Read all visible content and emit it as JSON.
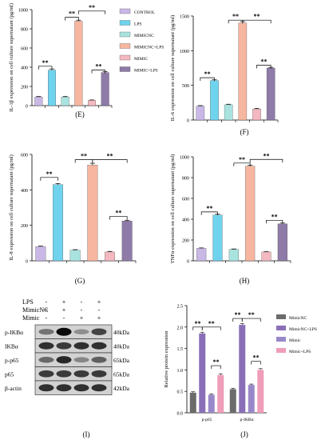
{
  "legend_E": [
    "CONTROL",
    "LPS",
    "MIMICNC",
    "MIMICNC+LPS",
    "MIMIC",
    "MIMIC+LPS"
  ],
  "legend_J": [
    "MimicNC",
    "MimicNC+LPS",
    "Mimic",
    "Mimic+LPS"
  ],
  "colors": {
    "control": "#c9b8e6",
    "lps": "#6fd3ee",
    "mimicnc": "#a9e3df",
    "mimicnc_lps": "#f7b6a0",
    "mimic": "#f3b8c0",
    "mimic_lps": "#8e7ba8",
    "j_mimicnc": "#6b6b6b",
    "j_mimicnc_lps": "#8a6fb8",
    "j_mimic": "#9988c9",
    "j_mimic_lps": "#ef9db8"
  },
  "chart_data": [
    {
      "panel": "E",
      "type": "bar",
      "categories": [
        "CONTROL",
        "LPS",
        "MIMICNC",
        "MIMICNC+LPS",
        "MIMIC",
        "MIMIC+LPS"
      ],
      "values": [
        90,
        370,
        90,
        880,
        55,
        345
      ],
      "errors": [
        5,
        12,
        5,
        10,
        4,
        8
      ],
      "ylabel": "IL-1β expression on cell culture supernatant (pg/ml)",
      "ylim": [
        0,
        1000
      ],
      "yticks": [
        0,
        200,
        400,
        600,
        800,
        1000
      ],
      "yticklabels": [
        "0",
        "200",
        "400",
        "600",
        "800",
        "1000"
      ],
      "significance": [
        {
          "from": 0,
          "to": 1,
          "label": "**",
          "level": 410
        },
        {
          "from": 2,
          "to": 3,
          "label": "**",
          "level": 920
        },
        {
          "from": 3,
          "to": 5,
          "label": "**",
          "level": 985
        },
        {
          "from": 4,
          "to": 5,
          "label": "**",
          "level": 370
        }
      ],
      "panel_label": "(E)"
    },
    {
      "panel": "F",
      "type": "bar",
      "categories": [
        "CONTROL",
        "LPS",
        "MIMICNC",
        "MIMICNC+LPS",
        "MIMIC",
        "MIMIC+LPS"
      ],
      "values": [
        200,
        570,
        220,
        1400,
        160,
        750
      ],
      "errors": [
        8,
        10,
        8,
        20,
        8,
        10
      ],
      "ylabel": "IL-6 expression on cell culture supernatant (pg/ml)",
      "ylim": [
        0,
        1500
      ],
      "yticks": [
        0,
        500,
        1000,
        1500
      ],
      "yticklabels": [
        "0",
        "500",
        "1000",
        "1500"
      ],
      "significance": [
        {
          "from": 0,
          "to": 1,
          "label": "**",
          "level": 610
        },
        {
          "from": 2,
          "to": 3,
          "label": "**",
          "level": 1440
        },
        {
          "from": 3,
          "to": 5,
          "label": "**",
          "level": 1440
        },
        {
          "from": 4,
          "to": 5,
          "label": "**",
          "level": 790
        }
      ],
      "panel_label": "(F)"
    },
    {
      "panel": "G",
      "type": "bar",
      "categories": [
        "CONTROL",
        "LPS",
        "MIMICNC",
        "MIMICNC+LPS",
        "MIMIC",
        "MIMIC+LPS"
      ],
      "values": [
        80,
        430,
        60,
        540,
        50,
        225
      ],
      "errors": [
        3,
        6,
        3,
        10,
        3,
        4
      ],
      "ylabel": "IL-8 expression on cell culture supernatant (pg/ml)",
      "ylim": [
        0,
        600
      ],
      "yticks": [
        0,
        200,
        400,
        600
      ],
      "yticklabels": [
        "0",
        "200",
        "400",
        "600"
      ],
      "significance": [
        {
          "from": 0,
          "to": 1,
          "label": "**",
          "level": 470
        },
        {
          "from": 2,
          "to": 3,
          "label": "**",
          "level": 570
        },
        {
          "from": 3,
          "to": 5,
          "label": "**",
          "level": 570
        },
        {
          "from": 4,
          "to": 5,
          "label": "**",
          "level": 250
        }
      ],
      "panel_label": "(G)"
    },
    {
      "panel": "H",
      "type": "bar",
      "categories": [
        "CONTROL",
        "LPS",
        "MIMICNC",
        "MIMICNC+LPS",
        "MIMIC",
        "MIMIC+LPS"
      ],
      "values": [
        120,
        440,
        110,
        910,
        85,
        355
      ],
      "errors": [
        4,
        8,
        4,
        10,
        3,
        8
      ],
      "ylabel": "TNFα expression on cell culture supernatant (pg/ml)",
      "ylim": [
        0,
        1000
      ],
      "yticks": [
        0,
        200,
        400,
        600,
        800,
        1000
      ],
      "yticklabels": [
        "0",
        "200",
        "400",
        "600",
        "800",
        "1000"
      ],
      "significance": [
        {
          "from": 0,
          "to": 1,
          "label": "**",
          "level": 470
        },
        {
          "from": 2,
          "to": 3,
          "label": "**",
          "level": 940
        },
        {
          "from": 3,
          "to": 5,
          "label": "**",
          "level": 975
        },
        {
          "from": 4,
          "to": 5,
          "label": "**",
          "level": 390
        }
      ],
      "panel_label": "(H)"
    },
    {
      "panel": "J",
      "type": "bar",
      "categories": [
        "p-p65",
        "p-IKBα"
      ],
      "series": [
        {
          "name": "MimicNC",
          "values": [
            0.47,
            0.55
          ],
          "errors": [
            0.02,
            0.02
          ]
        },
        {
          "name": "MimicNC+LPS",
          "values": [
            1.85,
            2.05
          ],
          "errors": [
            0.03,
            0.03
          ]
        },
        {
          "name": "Mimic",
          "values": [
            0.42,
            0.65
          ],
          "errors": [
            0.02,
            0.02
          ]
        },
        {
          "name": "Mimic+LPS",
          "values": [
            0.88,
            1.0
          ],
          "errors": [
            0.03,
            0.03
          ]
        }
      ],
      "ylabel": "Relative protein expression",
      "ylim": [
        0,
        2.5
      ],
      "yticks": [
        0,
        0.5,
        1.0,
        1.5,
        2.0,
        2.5
      ],
      "yticklabels": [
        "0.0",
        "0.5",
        "1.0",
        "1.5",
        "2.0",
        "2.5"
      ],
      "significance": [
        {
          "group": 0,
          "from": 0,
          "to": 1,
          "label": "**",
          "level": 2.0
        },
        {
          "group": 0,
          "from": 1,
          "to": 3,
          "label": "**",
          "level": 2.0
        },
        {
          "group": 0,
          "from": 2,
          "to": 3,
          "label": "**",
          "level": 1.1
        },
        {
          "group": 1,
          "from": 0,
          "to": 1,
          "label": "**",
          "level": 2.2
        },
        {
          "group": 1,
          "from": 1,
          "to": 3,
          "label": "**",
          "level": 2.2
        },
        {
          "group": 1,
          "from": 2,
          "to": 3,
          "label": "**",
          "level": 1.2
        }
      ],
      "panel_label": "(J)"
    }
  ],
  "blot": {
    "conditions": [
      {
        "label": "LPS",
        "signs": [
          "-",
          "+",
          "-",
          "+"
        ]
      },
      {
        "label": "MimicNC",
        "signs": [
          "+",
          "+",
          "-",
          "-"
        ]
      },
      {
        "label": "Mimic",
        "signs": [
          "-",
          "-",
          "+",
          "+"
        ]
      }
    ],
    "bands": [
      {
        "label": "p-IKBα",
        "kda": "40kDa",
        "intensity": [
          0.45,
          1.0,
          0.3,
          0.7
        ]
      },
      {
        "label": "IKBα",
        "kda": "40kDa",
        "intensity": [
          0.8,
          0.75,
          0.8,
          0.8
        ]
      },
      {
        "label": "p-p65",
        "kda": "65kDa",
        "intensity": [
          0.5,
          0.85,
          0.35,
          0.55
        ]
      },
      {
        "label": "p65",
        "kda": "65kDa",
        "intensity": [
          0.75,
          0.75,
          0.75,
          0.75
        ]
      },
      {
        "label": "β-actin",
        "kda": "42kDa",
        "intensity": [
          0.8,
          0.8,
          0.8,
          0.8
        ]
      }
    ],
    "panel_label": "(I)"
  }
}
